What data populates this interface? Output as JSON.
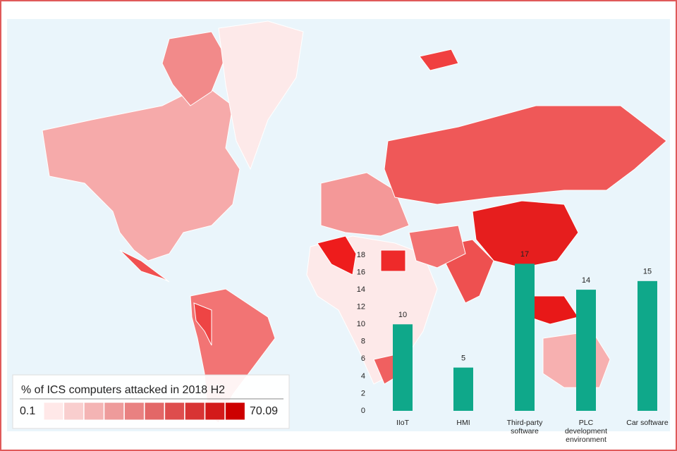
{
  "chart_data": {
    "type": "bar",
    "categories": [
      "IIoT",
      "HMI",
      "Third-party software",
      "PLC development environment",
      "Car software"
    ],
    "values": [
      10,
      5,
      17,
      14,
      15
    ],
    "color": "#0fa88a",
    "ylim": [
      0,
      18
    ],
    "yticks": [
      0,
      2,
      4,
      6,
      8,
      10,
      12,
      14,
      16,
      18
    ],
    "grid": false
  },
  "map_legend": {
    "title": "% of ICS computers attacked in 2018 H2",
    "min": 0.1,
    "max": 70.09
  }
}
